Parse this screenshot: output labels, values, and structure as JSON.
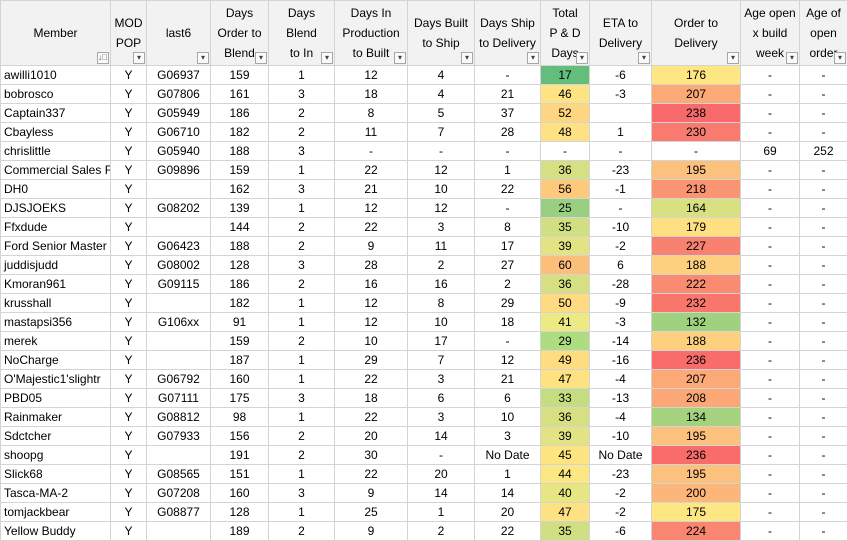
{
  "columns": [
    {
      "label": "Member",
      "filter_icon": "sort-filter-icon",
      "glyph": "↓⃓"
    },
    {
      "label": "MOD\nPOP",
      "filter_icon": "dropdown-arrow-icon",
      "glyph": "▾"
    },
    {
      "label": "last6",
      "filter_icon": "dropdown-arrow-icon",
      "glyph": "▾"
    },
    {
      "label": "Days\nOrder to\nBlend",
      "filter_icon": "dropdown-arrow-icon",
      "glyph": "▾"
    },
    {
      "label": "Days Blend\nto In\nProduction",
      "filter_icon": "dropdown-arrow-icon",
      "glyph": "▾"
    },
    {
      "label": "Days In\nProduction\nto Built",
      "filter_icon": "dropdown-arrow-icon",
      "glyph": "▾"
    },
    {
      "label": "Days Built\nto Ship",
      "filter_icon": "dropdown-arrow-icon",
      "glyph": "▾"
    },
    {
      "label": "Days Ship\nto Delivery",
      "filter_icon": "dropdown-arrow-icon",
      "glyph": "▾"
    },
    {
      "label": "Total\nP & D\nDays",
      "filter_icon": "dropdown-arrow-icon",
      "glyph": "▾"
    },
    {
      "label": "ETA to\nDelivery",
      "filter_icon": "dropdown-arrow-icon",
      "glyph": "▾"
    },
    {
      "label": "Order to\nDelivery",
      "filter_icon": "dropdown-arrow-icon",
      "glyph": "▾"
    },
    {
      "label": "Age open\nx build\nweek",
      "filter_icon": "dropdown-arrow-icon",
      "glyph": "▾"
    },
    {
      "label": "Age of\nopen\norder",
      "filter_icon": "dropdown-arrow-icon",
      "glyph": "▾"
    }
  ],
  "rows": [
    {
      "member": "awilli1010",
      "mod_pop": "Y",
      "last6": "G06937",
      "order_to_blend": "159",
      "blend_to_prod": "1",
      "prod_to_built": "12",
      "built_to_ship": "4",
      "ship_to_delivery": "-",
      "total_pd": "17",
      "total_pd_color": "#63be7b",
      "eta_to_delivery": "-6",
      "order_to_delivery": "176",
      "order_to_delivery_color": "#fee683",
      "age_open_build": "-",
      "age_open_order": "-"
    },
    {
      "member": "bobrosco",
      "mod_pop": "Y",
      "last6": "G07806",
      "order_to_blend": "161",
      "blend_to_prod": "3",
      "prod_to_built": "18",
      "built_to_ship": "4",
      "ship_to_delivery": "21",
      "total_pd": "46",
      "total_pd_color": "#fee382",
      "eta_to_delivery": "-3",
      "order_to_delivery": "207",
      "order_to_delivery_color": "#fba977",
      "age_open_build": "-",
      "age_open_order": "-"
    },
    {
      "member": "Captain337",
      "mod_pop": "Y",
      "last6": "G05949",
      "order_to_blend": "186",
      "blend_to_prod": "2",
      "prod_to_built": "8",
      "built_to_ship": "5",
      "ship_to_delivery": "37",
      "total_pd": "52",
      "total_pd_color": "#fed580",
      "eta_to_delivery": "",
      "order_to_delivery": "238",
      "order_to_delivery_color": "#f8696b",
      "age_open_build": "-",
      "age_open_order": "-"
    },
    {
      "member": "Cbayless",
      "mod_pop": "Y",
      "last6": "G06710",
      "order_to_blend": "182",
      "blend_to_prod": "2",
      "prod_to_built": "11",
      "built_to_ship": "7",
      "ship_to_delivery": "28",
      "total_pd": "48",
      "total_pd_color": "#fee182",
      "eta_to_delivery": "1",
      "order_to_delivery": "230",
      "order_to_delivery_color": "#f97a6e",
      "age_open_build": "-",
      "age_open_order": "-"
    },
    {
      "member": "chrislittle",
      "mod_pop": "Y",
      "last6": "G05940",
      "order_to_blend": "188",
      "blend_to_prod": "3",
      "prod_to_built": "-",
      "built_to_ship": "-",
      "ship_to_delivery": "-",
      "total_pd": "-",
      "total_pd_color": "#ffffff",
      "eta_to_delivery": "-",
      "order_to_delivery": "-",
      "order_to_delivery_color": "#ffffff",
      "age_open_build": "69",
      "age_open_order": "252"
    },
    {
      "member": "Commercial Sales F",
      "mod_pop": "Y",
      "last6": "G09896",
      "order_to_blend": "159",
      "blend_to_prod": "1",
      "prod_to_built": "22",
      "built_to_ship": "12",
      "ship_to_delivery": "1",
      "total_pd": "36",
      "total_pd_color": "#d6e082",
      "eta_to_delivery": "-23",
      "order_to_delivery": "195",
      "order_to_delivery_color": "#fcc17c",
      "age_open_build": "-",
      "age_open_order": "-"
    },
    {
      "member": "DH0",
      "mod_pop": "Y",
      "last6": "",
      "order_to_blend": "162",
      "blend_to_prod": "3",
      "prod_to_built": "21",
      "built_to_ship": "10",
      "ship_to_delivery": "22",
      "total_pd": "56",
      "total_pd_color": "#fdca7d",
      "eta_to_delivery": "-1",
      "order_to_delivery": "218",
      "order_to_delivery_color": "#fa9473",
      "age_open_build": "-",
      "age_open_order": "-"
    },
    {
      "member": "DJSJOEKS",
      "mod_pop": "Y",
      "last6": "G08202",
      "order_to_blend": "139",
      "blend_to_prod": "1",
      "prod_to_built": "12",
      "built_to_ship": "12",
      "ship_to_delivery": "-",
      "total_pd": "25",
      "total_pd_color": "#9acf7f",
      "eta_to_delivery": "-",
      "order_to_delivery": "164",
      "order_to_delivery_color": "#d9e082",
      "age_open_build": "-",
      "age_open_order": "-"
    },
    {
      "member": "Ffxdude",
      "mod_pop": "Y",
      "last6": "",
      "order_to_blend": "144",
      "blend_to_prod": "2",
      "prod_to_built": "22",
      "built_to_ship": "3",
      "ship_to_delivery": "8",
      "total_pd": "35",
      "total_pd_color": "#d1df82",
      "eta_to_delivery": "-10",
      "order_to_delivery": "179",
      "order_to_delivery_color": "#fee082",
      "age_open_build": "-",
      "age_open_order": "-"
    },
    {
      "member": "Ford Senior Master",
      "mod_pop": "Y",
      "last6": "G06423",
      "order_to_blend": "188",
      "blend_to_prod": "2",
      "prod_to_built": "9",
      "built_to_ship": "11",
      "ship_to_delivery": "17",
      "total_pd": "39",
      "total_pd_color": "#e4e383",
      "eta_to_delivery": "-2",
      "order_to_delivery": "227",
      "order_to_delivery_color": "#f9816f",
      "age_open_build": "-",
      "age_open_order": "-"
    },
    {
      "member": "juddisjudd",
      "mod_pop": "Y",
      "last6": "G08002",
      "order_to_blend": "128",
      "blend_to_prod": "3",
      "prod_to_built": "28",
      "built_to_ship": "2",
      "ship_to_delivery": "27",
      "total_pd": "60",
      "total_pd_color": "#fcbf7b",
      "eta_to_delivery": "6",
      "order_to_delivery": "188",
      "order_to_delivery_color": "#fdd07f",
      "age_open_build": "-",
      "age_open_order": "-"
    },
    {
      "member": "Kmoran961",
      "mod_pop": "Y",
      "last6": "G09115",
      "order_to_blend": "186",
      "blend_to_prod": "2",
      "prod_to_built": "16",
      "built_to_ship": "16",
      "ship_to_delivery": "2",
      "total_pd": "36",
      "total_pd_color": "#d6e082",
      "eta_to_delivery": "-28",
      "order_to_delivery": "222",
      "order_to_delivery_color": "#f98b71",
      "age_open_build": "-",
      "age_open_order": "-"
    },
    {
      "member": "krusshall",
      "mod_pop": "Y",
      "last6": "",
      "order_to_blend": "182",
      "blend_to_prod": "1",
      "prod_to_built": "12",
      "built_to_ship": "8",
      "ship_to_delivery": "29",
      "total_pd": "50",
      "total_pd_color": "#feda81",
      "eta_to_delivery": "-9",
      "order_to_delivery": "232",
      "order_to_delivery_color": "#f9766d",
      "age_open_build": "-",
      "age_open_order": "-"
    },
    {
      "member": "mastapsi356",
      "mod_pop": "Y",
      "last6": "G106xx",
      "order_to_blend": "91",
      "blend_to_prod": "1",
      "prod_to_built": "12",
      "built_to_ship": "10",
      "ship_to_delivery": "18",
      "total_pd": "41",
      "total_pd_color": "#edea84",
      "eta_to_delivery": "-3",
      "order_to_delivery": "132",
      "order_to_delivery_color": "#9fd17f",
      "age_open_build": "-",
      "age_open_order": "-"
    },
    {
      "member": "merek",
      "mod_pop": "Y",
      "last6": "",
      "order_to_blend": "159",
      "blend_to_prod": "2",
      "prod_to_built": "10",
      "built_to_ship": "17",
      "ship_to_delivery": "-",
      "total_pd": "29",
      "total_pd_color": "#addd80",
      "eta_to_delivery": "-14",
      "order_to_delivery": "188",
      "order_to_delivery_color": "#fdd07f",
      "age_open_build": "-",
      "age_open_order": "-"
    },
    {
      "member": "NoCharge",
      "mod_pop": "Y",
      "last6": "",
      "order_to_blend": "187",
      "blend_to_prod": "1",
      "prod_to_built": "29",
      "built_to_ship": "7",
      "ship_to_delivery": "12",
      "total_pd": "49",
      "total_pd_color": "#fedd81",
      "eta_to_delivery": "-16",
      "order_to_delivery": "236",
      "order_to_delivery_color": "#f86c6c",
      "age_open_build": "-",
      "age_open_order": "-"
    },
    {
      "member": "O'Majestic1'slightr",
      "mod_pop": "Y",
      "last6": "G06792",
      "order_to_blend": "160",
      "blend_to_prod": "1",
      "prod_to_built": "22",
      "built_to_ship": "3",
      "ship_to_delivery": "21",
      "total_pd": "47",
      "total_pd_color": "#fee282",
      "eta_to_delivery": "-4",
      "order_to_delivery": "207",
      "order_to_delivery_color": "#fba977",
      "age_open_build": "-",
      "age_open_order": "-"
    },
    {
      "member": "PBD05",
      "mod_pop": "Y",
      "last6": "G07111",
      "order_to_blend": "175",
      "blend_to_prod": "3",
      "prod_to_built": "18",
      "built_to_ship": "6",
      "ship_to_delivery": "6",
      "total_pd": "33",
      "total_pd_color": "#c5dd81",
      "eta_to_delivery": "-13",
      "order_to_delivery": "208",
      "order_to_delivery_color": "#fba776",
      "age_open_build": "-",
      "age_open_order": "-"
    },
    {
      "member": "Rainmaker",
      "mod_pop": "Y",
      "last6": "G08812",
      "order_to_blend": "98",
      "blend_to_prod": "1",
      "prod_to_built": "22",
      "built_to_ship": "3",
      "ship_to_delivery": "10",
      "total_pd": "36",
      "total_pd_color": "#d6e082",
      "eta_to_delivery": "-4",
      "order_to_delivery": "134",
      "order_to_delivery_color": "#a4d27f",
      "age_open_build": "-",
      "age_open_order": "-"
    },
    {
      "member": "Sdctcher",
      "mod_pop": "Y",
      "last6": "G07933",
      "order_to_blend": "156",
      "blend_to_prod": "2",
      "prod_to_built": "20",
      "built_to_ship": "14",
      "ship_to_delivery": "3",
      "total_pd": "39",
      "total_pd_color": "#e4e383",
      "eta_to_delivery": "-10",
      "order_to_delivery": "195",
      "order_to_delivery_color": "#fcc17c",
      "age_open_build": "-",
      "age_open_order": "-"
    },
    {
      "member": "shoopg",
      "mod_pop": "Y",
      "last6": "",
      "order_to_blend": "191",
      "blend_to_prod": "2",
      "prod_to_built": "30",
      "built_to_ship": "-",
      "ship_to_delivery": "No Date",
      "total_pd": "45",
      "total_pd_color": "#fee582",
      "eta_to_delivery": "No Date",
      "order_to_delivery": "236",
      "order_to_delivery_color": "#f86c6c",
      "age_open_build": "-",
      "age_open_order": "-"
    },
    {
      "member": "Slick68",
      "mod_pop": "Y",
      "last6": "G08565",
      "order_to_blend": "151",
      "blend_to_prod": "1",
      "prod_to_built": "22",
      "built_to_ship": "20",
      "ship_to_delivery": "1",
      "total_pd": "44",
      "total_pd_color": "#fbe883",
      "eta_to_delivery": "-23",
      "order_to_delivery": "195",
      "order_to_delivery_color": "#fcc17c",
      "age_open_build": "-",
      "age_open_order": "-"
    },
    {
      "member": "Tasca-MA-2",
      "mod_pop": "Y",
      "last6": "G07208",
      "order_to_blend": "160",
      "blend_to_prod": "3",
      "prod_to_built": "9",
      "built_to_ship": "14",
      "ship_to_delivery": "14",
      "total_pd": "40",
      "total_pd_color": "#e8e683",
      "eta_to_delivery": "-2",
      "order_to_delivery": "200",
      "order_to_delivery_color": "#fcb67a",
      "age_open_build": "-",
      "age_open_order": "-"
    },
    {
      "member": "tomjackbear",
      "mod_pop": "Y",
      "last6": "G08877",
      "order_to_blend": "128",
      "blend_to_prod": "1",
      "prod_to_built": "25",
      "built_to_ship": "1",
      "ship_to_delivery": "20",
      "total_pd": "47",
      "total_pd_color": "#fee282",
      "eta_to_delivery": "-2",
      "order_to_delivery": "175",
      "order_to_delivery_color": "#fee683",
      "age_open_build": "-",
      "age_open_order": "-"
    },
    {
      "member": "Yellow Buddy",
      "mod_pop": "Y",
      "last6": "",
      "order_to_blend": "189",
      "blend_to_prod": "2",
      "prod_to_built": "9",
      "built_to_ship": "2",
      "ship_to_delivery": "22",
      "total_pd": "35",
      "total_pd_color": "#d1df82",
      "eta_to_delivery": "-6",
      "order_to_delivery": "224",
      "order_to_delivery_color": "#f98670",
      "age_open_build": "-",
      "age_open_order": "-"
    }
  ]
}
